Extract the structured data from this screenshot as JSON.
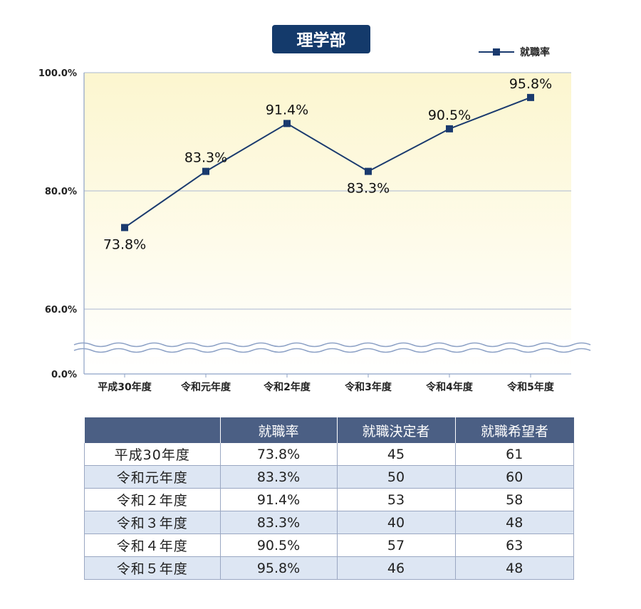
{
  "chart_data": {
    "type": "line",
    "title": "理学部",
    "categories": [
      "平成30年度",
      "令和元年度",
      "令和2年度",
      "令和3年度",
      "令和4年度",
      "令和5年度"
    ],
    "series": [
      {
        "name": "就職率",
        "values": [
          73.8,
          83.3,
          91.4,
          83.3,
          90.5,
          95.8
        ]
      }
    ],
    "data_labels": [
      "73.8%",
      "83.3%",
      "91.4%",
      "83.3%",
      "90.5%",
      "95.8%"
    ],
    "y_ticks": [
      {
        "value": 100,
        "label": "100.0%"
      },
      {
        "value": 80,
        "label": "80.0%"
      },
      {
        "value": 60,
        "label": "60.0%"
      },
      {
        "value": 0,
        "label": "0.0%"
      }
    ],
    "ylim": [
      0,
      100
    ],
    "axis_break": "between 0% and 60%",
    "legend_position": "top-right",
    "grid": true,
    "colors": {
      "line": "#1a3a6e",
      "title_bg": "#143a6b",
      "plot_bg_top": "#fdf8d5"
    }
  },
  "table": {
    "headers": [
      "",
      "就職率",
      "就職決定者",
      "就職希望者"
    ],
    "rows": [
      [
        "平成30年度",
        "73.8%",
        "45",
        "61"
      ],
      [
        "令和元年度",
        "83.3%",
        "50",
        "60"
      ],
      [
        "令和２年度",
        "91.4%",
        "53",
        "58"
      ],
      [
        "令和３年度",
        "83.3%",
        "40",
        "48"
      ],
      [
        "令和４年度",
        "90.5%",
        "57",
        "63"
      ],
      [
        "令和５年度",
        "95.8%",
        "46",
        "48"
      ]
    ]
  }
}
